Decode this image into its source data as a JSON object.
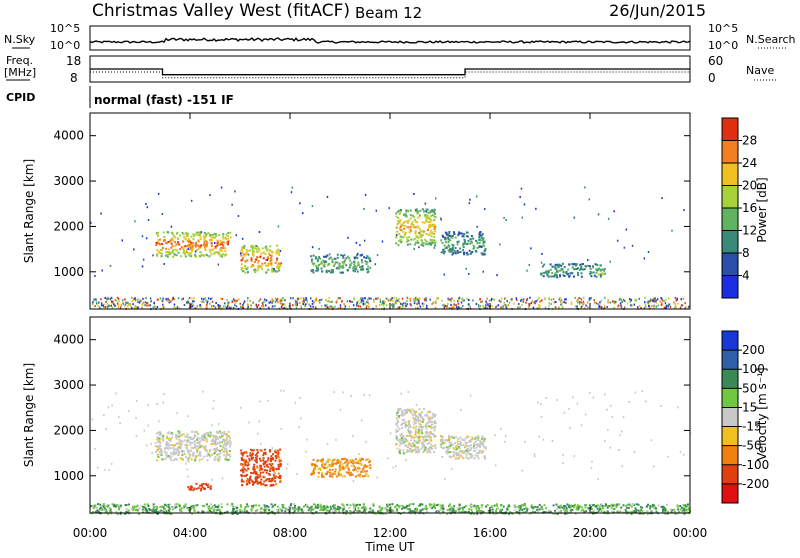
{
  "header": {
    "station": "Christmas Valley West (fitACF)",
    "beam": "Beam 12",
    "date": "26/Jun/2015"
  },
  "summary": {
    "nsky_label": "N.Sky",
    "nsearch_label": "N.Search",
    "noise_ticks": [
      "10^5",
      "10^0"
    ],
    "freq_label_line1": "Freq.",
    "freq_label_line2": "[MHz]",
    "freq_ticks": [
      "18",
      "8"
    ],
    "nave_label": "Nave",
    "nave_ticks": [
      "60",
      "0"
    ],
    "cpid_label": "CPID",
    "cpid_text": "normal (fast) -151 IF"
  },
  "panels": {
    "power_ylabel": "Slant Range [km]",
    "velocity_ylabel": "Slant Range [km]",
    "xlabel": "Time UT",
    "x_ticks": [
      "00:00",
      "04:00",
      "08:00",
      "12:00",
      "16:00",
      "20:00",
      "00:00"
    ],
    "y_ticks": [
      "1000",
      "2000",
      "3000",
      "4000"
    ]
  },
  "power_scale": {
    "label": "Power [dB]",
    "ticks": [
      "4",
      "8",
      "12",
      "16",
      "20",
      "24",
      "28"
    ],
    "colors": [
      "#1b2fe0",
      "#2a4fa8",
      "#3a8a7a",
      "#5fb55f",
      "#a8d23a",
      "#f0c020",
      "#f08020",
      "#e03010"
    ]
  },
  "velocity_scale": {
    "label": "Velocity [m s⁻¹]",
    "ticks": [
      "200",
      "100",
      "50",
      "15",
      "-15",
      "-50",
      "-100",
      "-200"
    ],
    "colors": [
      "#1838d8",
      "#2f5fa8",
      "#3a8a58",
      "#70c840",
      "#c8c8c8",
      "#f0c020",
      "#f08010",
      "#e04010",
      "#e01010"
    ]
  },
  "chart_data": [
    {
      "type": "line",
      "title": "N.Sky / N.Search",
      "x_range_hours": [
        0,
        24
      ],
      "note": "noise levels shown on log scale 10^0 to 10^5"
    },
    {
      "type": "line",
      "title": "Freq. / Nave",
      "x_hours": [
        0,
        2.9,
        2.9,
        15.0,
        15.0,
        24
      ],
      "freq_mhz": [
        13.0,
        13.0,
        10.8,
        10.8,
        13.0,
        13.0
      ],
      "ylim_freq": [
        8,
        18
      ],
      "ylim_nave": [
        0,
        60
      ]
    },
    {
      "type": "heatmap",
      "title": "Power [dB]",
      "x_range_hours": [
        0,
        24
      ],
      "ylim_km": [
        180,
        4500
      ],
      "scatter_regions": [
        {
          "t0": 2.6,
          "t1": 5.6,
          "r0": 1350,
          "r1": 1900,
          "level": 24
        },
        {
          "t0": 6.0,
          "t1": 7.6,
          "r0": 1000,
          "r1": 1600,
          "level": 24
        },
        {
          "t0": 8.8,
          "t1": 11.2,
          "r0": 1000,
          "r1": 1400,
          "level": 12
        },
        {
          "t0": 12.2,
          "t1": 13.8,
          "r0": 1600,
          "r1": 2400,
          "level": 20
        },
        {
          "t0": 14.0,
          "t1": 15.8,
          "r0": 1400,
          "r1": 1900,
          "level": 10
        },
        {
          "t0": 18.0,
          "t1": 20.4,
          "r0": 900,
          "r1": 1200,
          "level": 10
        },
        {
          "t0": 20.2,
          "t1": 20.6,
          "r0": 900,
          "r1": 1100,
          "level": 16
        }
      ]
    },
    {
      "type": "heatmap",
      "title": "Velocity [m s-1]",
      "x_range_hours": [
        0,
        24
      ],
      "ylim_km": [
        180,
        4500
      ],
      "scatter_regions": [
        {
          "t0": 2.6,
          "t1": 5.6,
          "r0": 1350,
          "r1": 2000,
          "velocity": 0
        },
        {
          "t0": 6.0,
          "t1": 7.6,
          "r0": 800,
          "r1": 1600,
          "velocity": -90
        },
        {
          "t0": 3.8,
          "t1": 4.8,
          "r0": 700,
          "r1": 850,
          "velocity": -100
        },
        {
          "t0": 8.8,
          "t1": 11.2,
          "r0": 1000,
          "r1": 1400,
          "velocity": -40
        },
        {
          "t0": 12.2,
          "t1": 13.8,
          "r0": 1500,
          "r1": 2500,
          "velocity": 0
        },
        {
          "t0": 14.0,
          "t1": 15.8,
          "r0": 1400,
          "r1": 1900,
          "velocity": 0
        },
        {
          "t0": 0,
          "t1": 24,
          "r0": 180,
          "r1": 400,
          "velocity": 30
        }
      ]
    }
  ]
}
